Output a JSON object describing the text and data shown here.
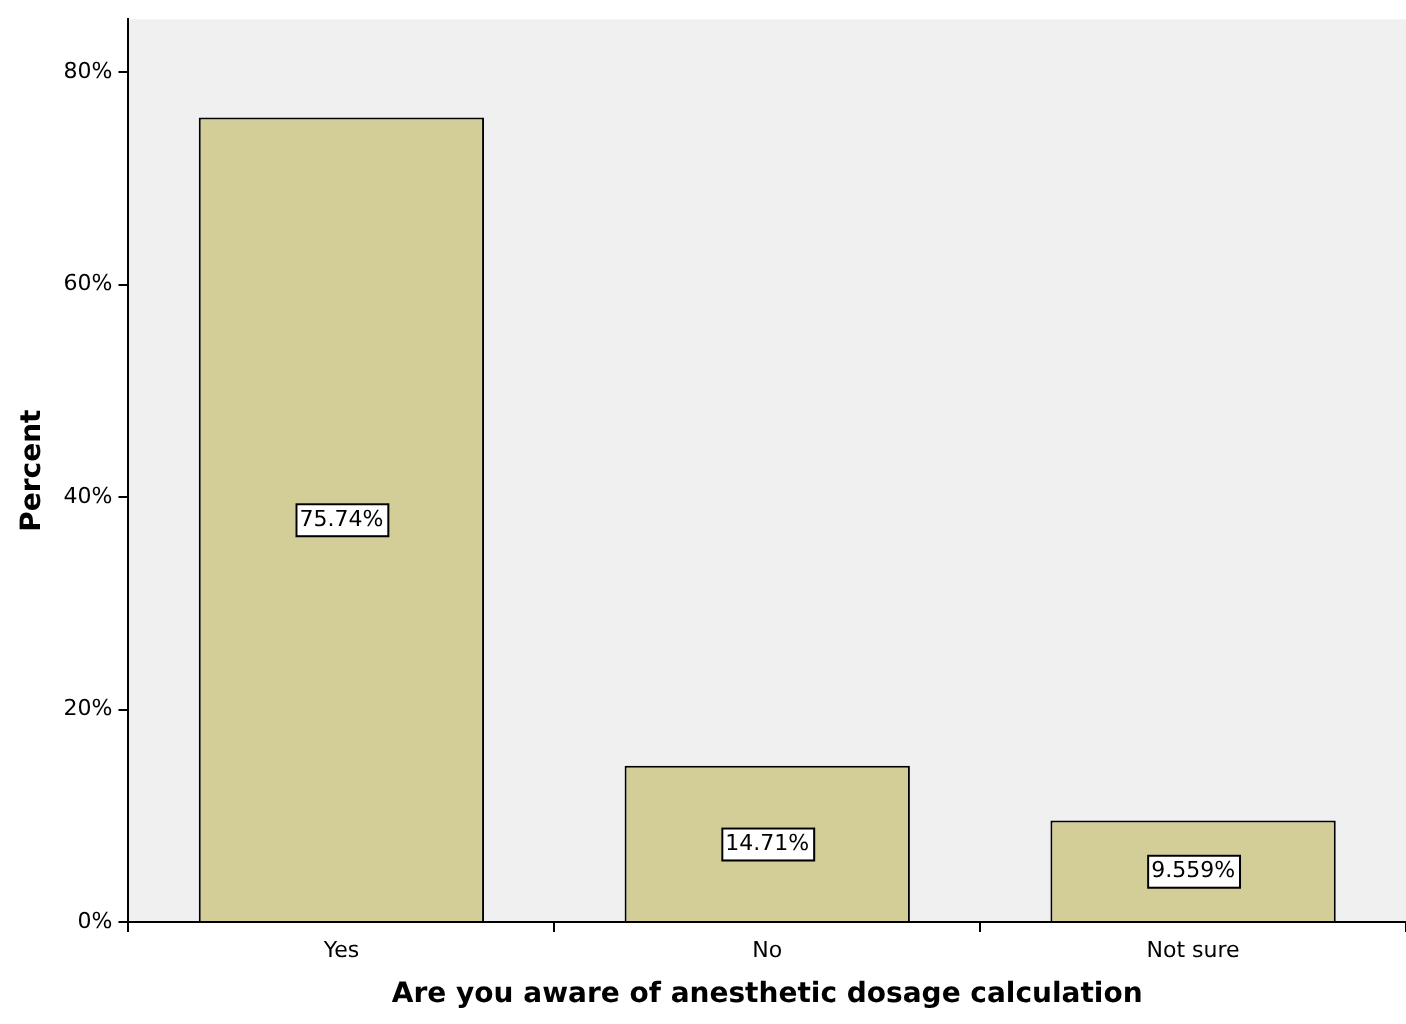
{
  "chart_data": {
    "type": "bar",
    "xlabel": "Are you aware of anesthetic dosage calculation",
    "ylabel": "Percent",
    "categories": [
      "Yes",
      "No",
      "Not sure"
    ],
    "values": [
      75.74,
      14.71,
      9.559
    ],
    "value_labels": [
      "75.74%",
      "14.71%",
      "9.559%"
    ],
    "color": "#d3ce97",
    "ylim": [
      0,
      85
    ],
    "yticks": [
      {
        "value": 0,
        "label": "0%"
      },
      {
        "value": 20,
        "label": "20%"
      },
      {
        "value": 40,
        "label": "40%"
      },
      {
        "value": 60,
        "label": "60%"
      },
      {
        "value": 80,
        "label": "80%"
      }
    ],
    "grid": false,
    "legend": false
  }
}
